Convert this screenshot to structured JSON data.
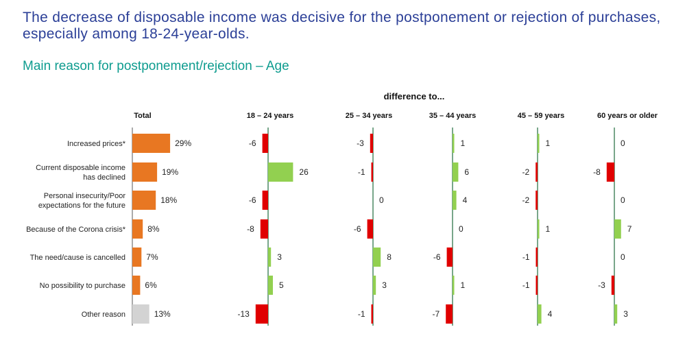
{
  "headline": "The decrease of disposable income was decisive for the postponement or rejection of purchases, especially among 18-24-year-olds.",
  "subtitle": "Main reason for postponement/rejection – Age",
  "chart_data": {
    "type": "bar",
    "orientation": "horizontal",
    "difference_header": "difference to...",
    "categories": [
      [
        "Increased prices*"
      ],
      [
        "Current disposable income",
        "has declined"
      ],
      [
        "Personal insecurity/Poor",
        "expectations for the future"
      ],
      [
        "Because of the Corona crisis*"
      ],
      [
        "The need/cause is cancelled"
      ],
      [
        "No possibility to purchase"
      ],
      [
        "Other reason"
      ]
    ],
    "total": {
      "name": "Total",
      "values": [
        29,
        19,
        18,
        8,
        7,
        6,
        13
      ],
      "labels": [
        "29%",
        "19%",
        "18%",
        "8%",
        "7%",
        "6%",
        "13%"
      ],
      "colors": [
        "#e87722",
        "#e87722",
        "#e87722",
        "#e87722",
        "#e87722",
        "#e87722",
        "#d3d3d3"
      ]
    },
    "series": [
      {
        "name": "18 – 24 years",
        "values": [
          -6,
          26,
          -6,
          -8,
          3,
          5,
          -13
        ]
      },
      {
        "name": "25 – 34 years",
        "values": [
          -3,
          -1,
          0,
          -6,
          8,
          3,
          -1
        ]
      },
      {
        "name": "35 – 44 years",
        "values": [
          1,
          6,
          4,
          0,
          -6,
          1,
          -7
        ]
      },
      {
        "name": "45 – 59 years",
        "values": [
          1,
          -2,
          -2,
          1,
          -1,
          -1,
          4
        ]
      },
      {
        "name": "60 years or older",
        "values": [
          0,
          -8,
          0,
          7,
          0,
          -3,
          3
        ]
      }
    ],
    "positive_color": "#92d050",
    "negative_color": "#e00000",
    "axis_color": "#1e6b3c"
  }
}
